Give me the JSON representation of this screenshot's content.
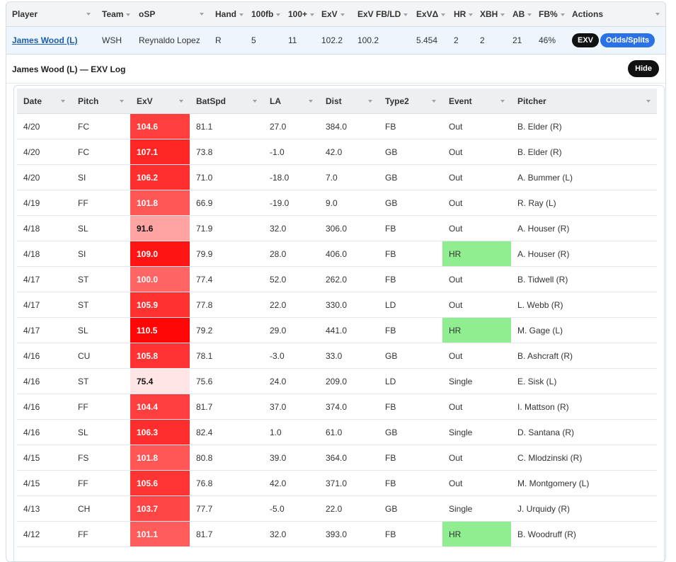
{
  "main": {
    "columns": [
      "Player",
      "Team",
      "oSP",
      "Hand",
      "100fb",
      "100+",
      "ExV",
      "ExV FB/LD",
      "ExVΔ",
      "HR",
      "XBH",
      "AB",
      "FB%",
      "Actions"
    ],
    "row": {
      "player": "James Wood (L)",
      "team": "WSH",
      "osp": "Reynaldo Lopez",
      "hand": "R",
      "fb100": "5",
      "plus100": "11",
      "exv": "102.2",
      "exv_fbld": "100.2",
      "exv_delta": "5.454",
      "hr": "2",
      "xbh": "2",
      "ab": "21",
      "fb_pct": "46%",
      "btn_exv": "EXV",
      "btn_odds": "Odds/Splits"
    },
    "colors": {
      "positive_delta": "#178a2e",
      "link": "#1a5fb4"
    }
  },
  "log": {
    "title": "James Wood (L) — EXV Log",
    "hide_label": "Hide",
    "columns": [
      "Date",
      "Pitch",
      "ExV",
      "BatSpd",
      "LA",
      "Dist",
      "Type2",
      "Event",
      "Pitcher"
    ],
    "rows": [
      {
        "date": "4/20",
        "pitch": "FC",
        "exv": "104.6",
        "batspd": "81.1",
        "la": "27.0",
        "dist": "384.0",
        "type2": "FB",
        "event": "Out",
        "pitcher": "B. Elder (R)"
      },
      {
        "date": "4/20",
        "pitch": "FC",
        "exv": "107.1",
        "batspd": "73.8",
        "la": "-1.0",
        "dist": "42.0",
        "type2": "GB",
        "event": "Out",
        "pitcher": "B. Elder (R)"
      },
      {
        "date": "4/20",
        "pitch": "SI",
        "exv": "106.2",
        "batspd": "71.0",
        "la": "-18.0",
        "dist": "7.0",
        "type2": "GB",
        "event": "Out",
        "pitcher": "A. Bummer (L)"
      },
      {
        "date": "4/19",
        "pitch": "FF",
        "exv": "101.8",
        "batspd": "66.9",
        "la": "-19.0",
        "dist": "9.0",
        "type2": "GB",
        "event": "Out",
        "pitcher": "R. Ray (L)"
      },
      {
        "date": "4/18",
        "pitch": "SL",
        "exv": "91.6",
        "batspd": "71.9",
        "la": "32.0",
        "dist": "306.0",
        "type2": "FB",
        "event": "Out",
        "pitcher": "A. Houser (R)"
      },
      {
        "date": "4/18",
        "pitch": "SI",
        "exv": "109.0",
        "batspd": "79.9",
        "la": "28.0",
        "dist": "406.0",
        "type2": "FB",
        "event": "HR",
        "pitcher": "A. Houser (R)"
      },
      {
        "date": "4/17",
        "pitch": "ST",
        "exv": "100.0",
        "batspd": "77.4",
        "la": "52.0",
        "dist": "262.0",
        "type2": "FB",
        "event": "Out",
        "pitcher": "B. Tidwell (R)"
      },
      {
        "date": "4/17",
        "pitch": "ST",
        "exv": "105.9",
        "batspd": "77.8",
        "la": "22.0",
        "dist": "330.0",
        "type2": "LD",
        "event": "Out",
        "pitcher": "L. Webb (R)"
      },
      {
        "date": "4/17",
        "pitch": "SL",
        "exv": "110.5",
        "batspd": "79.2",
        "la": "29.0",
        "dist": "441.0",
        "type2": "FB",
        "event": "HR",
        "pitcher": "M. Gage (L)"
      },
      {
        "date": "4/16",
        "pitch": "CU",
        "exv": "105.8",
        "batspd": "78.1",
        "la": "-3.0",
        "dist": "33.0",
        "type2": "GB",
        "event": "Out",
        "pitcher": "B. Ashcraft (R)"
      },
      {
        "date": "4/16",
        "pitch": "ST",
        "exv": "75.4",
        "batspd": "75.6",
        "la": "24.0",
        "dist": "209.0",
        "type2": "LD",
        "event": "Single",
        "pitcher": "E. Sisk (L)"
      },
      {
        "date": "4/16",
        "pitch": "FF",
        "exv": "104.4",
        "batspd": "81.7",
        "la": "37.0",
        "dist": "374.0",
        "type2": "FB",
        "event": "Out",
        "pitcher": "I. Mattson (R)"
      },
      {
        "date": "4/16",
        "pitch": "SL",
        "exv": "106.3",
        "batspd": "82.4",
        "la": "1.0",
        "dist": "61.0",
        "type2": "GB",
        "event": "Single",
        "pitcher": "D. Santana (R)"
      },
      {
        "date": "4/15",
        "pitch": "FS",
        "exv": "101.8",
        "batspd": "80.8",
        "la": "39.0",
        "dist": "364.0",
        "type2": "FB",
        "event": "Out",
        "pitcher": "C. Mlodzinski (R)"
      },
      {
        "date": "4/15",
        "pitch": "FF",
        "exv": "105.6",
        "batspd": "76.8",
        "la": "42.0",
        "dist": "371.0",
        "type2": "FB",
        "event": "Out",
        "pitcher": "M. Montgomery (L)"
      },
      {
        "date": "4/13",
        "pitch": "CH",
        "exv": "103.7",
        "batspd": "77.7",
        "la": "-5.0",
        "dist": "22.0",
        "type2": "GB",
        "event": "Single",
        "pitcher": "J. Urquidy (R)"
      },
      {
        "date": "4/12",
        "pitch": "FF",
        "exv": "101.1",
        "batspd": "81.7",
        "la": "32.0",
        "dist": "393.0",
        "type2": "FB",
        "event": "HR",
        "pitcher": "B. Woodruff (R)"
      }
    ],
    "colors": {
      "hr_event": "#90ee90",
      "exv_hot": "#ff0000",
      "exv_cold": "#ffe5e5"
    }
  }
}
